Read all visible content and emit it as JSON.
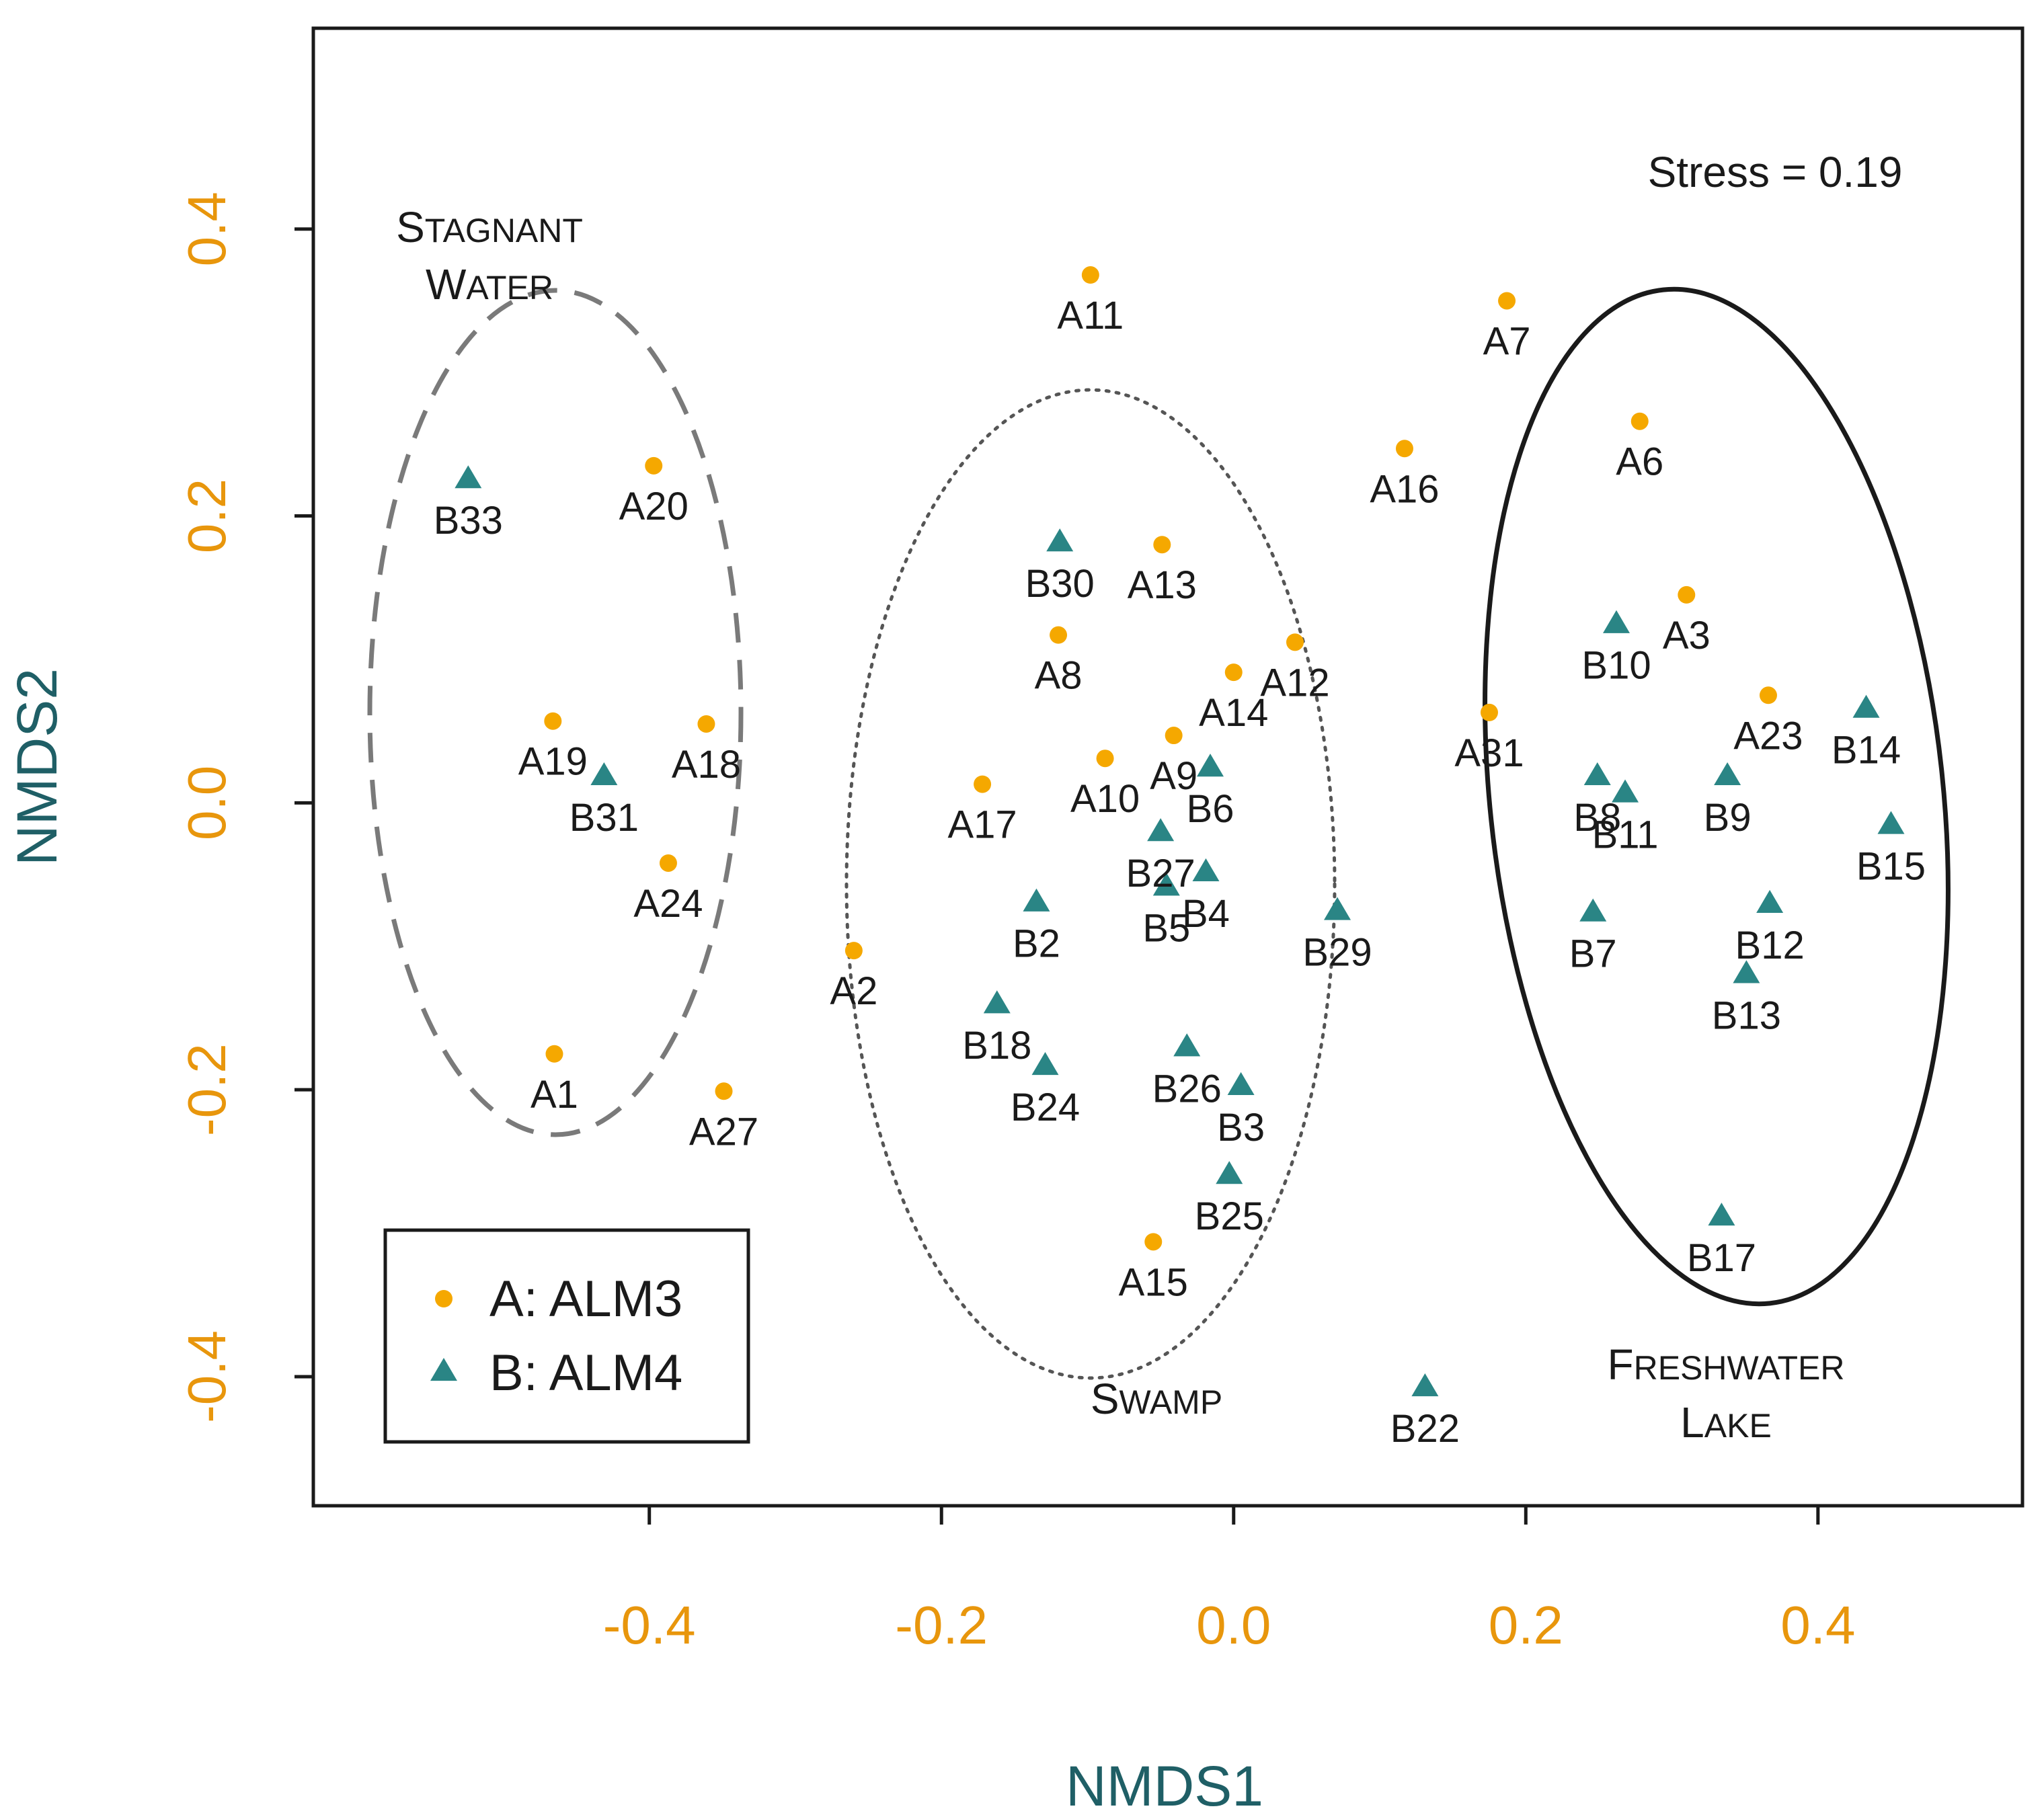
{
  "chart_data": {
    "type": "scatter",
    "xlabel": "NMDS1",
    "ylabel": "NMDS2",
    "xlim": [
      -0.63,
      0.54
    ],
    "ylim": [
      -0.49,
      0.54
    ],
    "xticks": [
      -0.4,
      -0.2,
      0.0,
      0.2,
      0.4
    ],
    "xtick_labels": [
      "-0.4",
      "-0.2",
      "0.0",
      "0.2",
      "0.4"
    ],
    "yticks": [
      -0.4,
      -0.2,
      0.0,
      0.2,
      0.4
    ],
    "ytick_labels": [
      "-0.4",
      "-0.2",
      "0.0",
      "0.2",
      "0.4"
    ],
    "stress_text": "Stress = 0.19",
    "colors": {
      "A": "#F5A800",
      "B": "#2A8585",
      "axis": "#E8960C",
      "title": "#1f5f66"
    },
    "legend": [
      {
        "key": "A",
        "label": "A: ALM3",
        "marker": "dot"
      },
      {
        "key": "B",
        "label": "B: ALM4",
        "marker": "triangle"
      }
    ],
    "series": [
      {
        "name": "A: ALM3",
        "marker": "dot",
        "points": [
          {
            "label": "A1",
            "x": -0.465,
            "y": -0.175
          },
          {
            "label": "A2",
            "x": -0.26,
            "y": -0.103
          },
          {
            "label": "A3",
            "x": 0.31,
            "y": 0.145
          },
          {
            "label": "A6",
            "x": 0.278,
            "y": 0.266
          },
          {
            "label": "A7",
            "x": 0.187,
            "y": 0.35
          },
          {
            "label": "A8",
            "x": -0.12,
            "y": 0.117
          },
          {
            "label": "A9",
            "x": -0.041,
            "y": 0.047
          },
          {
            "label": "A10",
            "x": -0.088,
            "y": 0.031
          },
          {
            "label": "A11",
            "x": -0.098,
            "y": 0.368
          },
          {
            "label": "A12",
            "x": 0.042,
            "y": 0.112
          },
          {
            "label": "A13",
            "x": -0.049,
            "y": 0.18
          },
          {
            "label": "A14",
            "x": 0.0,
            "y": 0.091
          },
          {
            "label": "A15",
            "x": -0.055,
            "y": -0.306
          },
          {
            "label": "A16",
            "x": 0.117,
            "y": 0.247
          },
          {
            "label": "A17",
            "x": -0.172,
            "y": 0.013
          },
          {
            "label": "A18",
            "x": -0.361,
            "y": 0.055
          },
          {
            "label": "A19",
            "x": -0.466,
            "y": 0.057
          },
          {
            "label": "A20",
            "x": -0.397,
            "y": 0.235
          },
          {
            "label": "A23",
            "x": 0.366,
            "y": 0.075
          },
          {
            "label": "A24",
            "x": -0.387,
            "y": -0.042
          },
          {
            "label": "A27",
            "x": -0.349,
            "y": -0.201
          },
          {
            "label": "A31",
            "x": 0.175,
            "y": 0.063
          }
        ]
      },
      {
        "name": "B: ALM4",
        "marker": "triangle",
        "points": [
          {
            "label": "B2",
            "x": -0.135,
            "y": -0.07
          },
          {
            "label": "B3",
            "x": 0.005,
            "y": -0.198
          },
          {
            "label": "B4",
            "x": -0.019,
            "y": -0.049
          },
          {
            "label": "B5",
            "x": -0.046,
            "y": -0.059
          },
          {
            "label": "B6",
            "x": -0.016,
            "y": 0.024
          },
          {
            "label": "B7",
            "x": 0.246,
            "y": -0.077
          },
          {
            "label": "B8",
            "x": 0.249,
            "y": 0.018
          },
          {
            "label": "B9",
            "x": 0.338,
            "y": 0.018
          },
          {
            "label": "B10",
            "x": 0.262,
            "y": 0.124
          },
          {
            "label": "B11",
            "x": 0.268,
            "y": 0.006
          },
          {
            "label": "B12",
            "x": 0.367,
            "y": -0.071
          },
          {
            "label": "B13",
            "x": 0.351,
            "y": -0.12
          },
          {
            "label": "B14",
            "x": 0.433,
            "y": 0.065
          },
          {
            "label": "B15",
            "x": 0.45,
            "y": -0.016
          },
          {
            "label": "B17",
            "x": 0.334,
            "y": -0.289
          },
          {
            "label": "B18",
            "x": -0.162,
            "y": -0.141
          },
          {
            "label": "B22",
            "x": 0.131,
            "y": -0.408
          },
          {
            "label": "B24",
            "x": -0.129,
            "y": -0.184
          },
          {
            "label": "B25",
            "x": -0.003,
            "y": -0.26
          },
          {
            "label": "B26",
            "x": -0.032,
            "y": -0.171
          },
          {
            "label": "B27",
            "x": -0.05,
            "y": -0.021
          },
          {
            "label": "B29",
            "x": 0.071,
            "y": -0.076
          },
          {
            "label": "B30",
            "x": -0.119,
            "y": 0.181
          },
          {
            "label": "B31",
            "x": -0.431,
            "y": 0.018
          },
          {
            "label": "B33",
            "x": -0.524,
            "y": 0.225
          }
        ]
      }
    ],
    "groups": [
      {
        "name": "stagnant-water",
        "label_lines": [
          "Stagnant",
          "Water"
        ],
        "style": "dashed"
      },
      {
        "name": "swamp",
        "label_lines": [
          "Swamp"
        ],
        "style": "dotted"
      },
      {
        "name": "freshwater-lake",
        "label_lines": [
          "Freshwater",
          "Lake"
        ],
        "style": "solid"
      }
    ]
  }
}
